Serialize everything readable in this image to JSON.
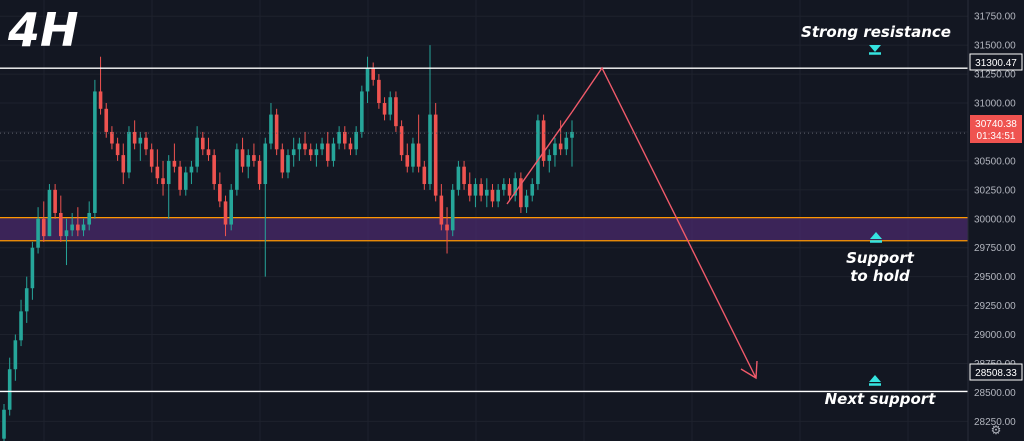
{
  "timeframe_label": "4H",
  "colors": {
    "background": "#131722",
    "grid": "#1e222d",
    "up": "#26a69a",
    "down": "#ef5350",
    "zone_fill": "#4a2a6b",
    "zone_border": "#ff9800",
    "level_line": "#ffffff",
    "arrow": "#f05a6a",
    "marker": "#35e4e0",
    "price_tag_bg": "#ef5350"
  },
  "annotations": {
    "resistance": "Strong resistance",
    "support_line1": "Support",
    "support_line2": "to hold",
    "next_support": "Next support"
  },
  "price_tags": {
    "resistance": "31300.47",
    "current_price": "30740.38",
    "countdown": "01:34:51",
    "next_support": "28508.33"
  },
  "chart_data": {
    "type": "candlestick",
    "y_axis": {
      "range": [
        28080,
        31890
      ],
      "ticks": [
        31750,
        31500,
        31250,
        31000,
        30750,
        30500,
        30250,
        30000,
        29750,
        29500,
        29250,
        29000,
        28750,
        28500,
        28250
      ],
      "tick_labels": [
        "31750.00",
        "31500.00",
        "31250.00",
        "31000.00",
        "30750.00",
        "30500.00",
        "30250.00",
        "30000.00",
        "29750.00",
        "29500.00",
        "29250.00",
        "29000.00",
        "28750.00",
        "28500.00",
        "28250.00"
      ],
      "position": "right"
    },
    "levels": [
      {
        "name": "Strong resistance",
        "value": 31300.47
      },
      {
        "name": "Next support",
        "value": 28508.33
      }
    ],
    "zone": {
      "name": "Support to hold",
      "from": 29810,
      "to": 30010
    },
    "current_price": 30740.38,
    "candles": [
      [
        28100,
        28400,
        28050,
        28350
      ],
      [
        28350,
        28800,
        28300,
        28700
      ],
      [
        28700,
        29000,
        28600,
        28950
      ],
      [
        28950,
        29300,
        28900,
        29200
      ],
      [
        29200,
        29500,
        29100,
        29400
      ],
      [
        29400,
        29800,
        29300,
        29750
      ],
      [
        29750,
        30100,
        29700,
        30000
      ],
      [
        30000,
        30150,
        29800,
        29850
      ],
      [
        29850,
        30300,
        29850,
        30250
      ],
      [
        30250,
        30300,
        30000,
        30050
      ],
      [
        30050,
        30200,
        29800,
        29850
      ],
      [
        29850,
        30000,
        29600,
        29900
      ],
      [
        29900,
        30050,
        29850,
        29950
      ],
      [
        29950,
        30100,
        29850,
        29900
      ],
      [
        29900,
        30000,
        29850,
        29950
      ],
      [
        29950,
        30150,
        29900,
        30050
      ],
      [
        30050,
        31200,
        30000,
        31100
      ],
      [
        31100,
        31400,
        30900,
        30950
      ],
      [
        30950,
        31000,
        30700,
        30750
      ],
      [
        30750,
        30800,
        30600,
        30650
      ],
      [
        30650,
        30700,
        30500,
        30550
      ],
      [
        30550,
        30650,
        30300,
        30400
      ],
      [
        30400,
        30800,
        30350,
        30750
      ],
      [
        30750,
        30850,
        30600,
        30650
      ],
      [
        30650,
        30750,
        30500,
        30700
      ],
      [
        30700,
        30750,
        30550,
        30600
      ],
      [
        30600,
        30650,
        30400,
        30450
      ],
      [
        30450,
        30600,
        30300,
        30350
      ],
      [
        30350,
        30500,
        30200,
        30300
      ],
      [
        30300,
        30550,
        30000,
        30500
      ],
      [
        30500,
        30650,
        30400,
        30450
      ],
      [
        30450,
        30500,
        30200,
        30250
      ],
      [
        30250,
        30450,
        30200,
        30400
      ],
      [
        30400,
        30500,
        30300,
        30450
      ],
      [
        30450,
        30800,
        30400,
        30700
      ],
      [
        30700,
        30750,
        30550,
        30600
      ],
      [
        30600,
        30700,
        30500,
        30550
      ],
      [
        30550,
        30600,
        30250,
        30300
      ],
      [
        30300,
        30400,
        30100,
        30150
      ],
      [
        30150,
        30200,
        29850,
        29950
      ],
      [
        29950,
        30300,
        29900,
        30250
      ],
      [
        30250,
        30650,
        30200,
        30600
      ],
      [
        30600,
        30700,
        30400,
        30450
      ],
      [
        30450,
        30600,
        30350,
        30550
      ],
      [
        30550,
        30650,
        30450,
        30500
      ],
      [
        30500,
        30550,
        30250,
        30300
      ],
      [
        30300,
        30700,
        29500,
        30650
      ],
      [
        30650,
        31000,
        30600,
        30900
      ],
      [
        30900,
        30950,
        30550,
        30600
      ],
      [
        30600,
        30650,
        30350,
        30400
      ],
      [
        30400,
        30600,
        30350,
        30550
      ],
      [
        30550,
        30700,
        30450,
        30600
      ],
      [
        30600,
        30700,
        30500,
        30650
      ],
      [
        30650,
        30750,
        30550,
        30600
      ],
      [
        30600,
        30650,
        30500,
        30550
      ],
      [
        30550,
        30650,
        30450,
        30600
      ],
      [
        30600,
        30700,
        30550,
        30650
      ],
      [
        30650,
        30750,
        30450,
        30500
      ],
      [
        30500,
        30700,
        30450,
        30650
      ],
      [
        30650,
        30800,
        30600,
        30750
      ],
      [
        30750,
        30800,
        30600,
        30650
      ],
      [
        30650,
        30700,
        30550,
        30600
      ],
      [
        30600,
        30800,
        30550,
        30750
      ],
      [
        30750,
        31150,
        30700,
        31100
      ],
      [
        31100,
        31400,
        31000,
        31300
      ],
      [
        31300,
        31350,
        31150,
        31200
      ],
      [
        31200,
        31250,
        30950,
        31000
      ],
      [
        31000,
        31050,
        30850,
        30900
      ],
      [
        30900,
        31100,
        30850,
        31050
      ],
      [
        31050,
        31100,
        30750,
        30800
      ],
      [
        30800,
        30850,
        30500,
        30550
      ],
      [
        30550,
        30650,
        30400,
        30450
      ],
      [
        30450,
        30700,
        30400,
        30650
      ],
      [
        30650,
        30900,
        30400,
        30450
      ],
      [
        30450,
        30500,
        30250,
        30300
      ],
      [
        30300,
        31500,
        30250,
        30900
      ],
      [
        30900,
        31000,
        30150,
        30200
      ],
      [
        30200,
        30300,
        29900,
        29950
      ],
      [
        29950,
        30100,
        29700,
        29900
      ],
      [
        29900,
        30300,
        29850,
        30250
      ],
      [
        30250,
        30500,
        30200,
        30450
      ],
      [
        30450,
        30500,
        30250,
        30300
      ],
      [
        30300,
        30400,
        30150,
        30200
      ],
      [
        30200,
        30350,
        30100,
        30300
      ],
      [
        30300,
        30350,
        30150,
        30200
      ],
      [
        30200,
        30350,
        30100,
        30250
      ],
      [
        30250,
        30300,
        30100,
        30150
      ],
      [
        30150,
        30300,
        30100,
        30250
      ],
      [
        30250,
        30350,
        30200,
        30300
      ],
      [
        30300,
        30350,
        30150,
        30200
      ],
      [
        30200,
        30400,
        30150,
        30350
      ],
      [
        30350,
        30400,
        30050,
        30100
      ],
      [
        30100,
        30250,
        30050,
        30200
      ],
      [
        30200,
        30350,
        30150,
        30300
      ],
      [
        30300,
        30900,
        30250,
        30850
      ],
      [
        30850,
        30900,
        30450,
        30500
      ],
      [
        30500,
        30600,
        30400,
        30550
      ],
      [
        30550,
        30700,
        30450,
        30650
      ],
      [
        30650,
        30850,
        30550,
        30600
      ],
      [
        30600,
        30750,
        30550,
        30700
      ],
      [
        30700,
        30850,
        30450,
        30750
      ]
    ]
  }
}
